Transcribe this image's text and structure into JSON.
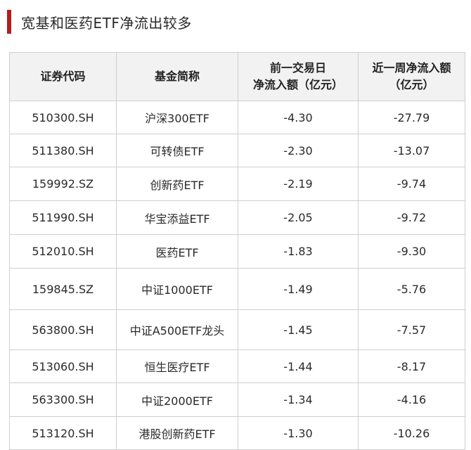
{
  "title": "宽基和医药ETF净流出较多",
  "table": {
    "headers": [
      {
        "line1": "证券代码",
        "line2": ""
      },
      {
        "line1": "基金简称",
        "line2": ""
      },
      {
        "line1": "前一交易日",
        "line2": "净流入额（亿元）"
      },
      {
        "line1": "近一周净流入额",
        "line2": "（亿元）"
      }
    ],
    "rows": [
      {
        "code": "510300.SH",
        "name": "沪深300ETF",
        "day": "-4.30",
        "week": "-27.79"
      },
      {
        "code": "511380.SH",
        "name": "可转债ETF",
        "day": "-2.30",
        "week": "-13.07"
      },
      {
        "code": "159992.SZ",
        "name": "创新药ETF",
        "day": "-2.19",
        "week": "-9.74"
      },
      {
        "code": "511990.SH",
        "name": "华宝添益ETF",
        "day": "-2.05",
        "week": "-9.72"
      },
      {
        "code": "512010.SH",
        "name": "医药ETF",
        "day": "-1.83",
        "week": "-9.30"
      },
      {
        "code": "159845.SZ",
        "name": "中证1000ETF",
        "day": "-1.49",
        "week": "-5.76"
      },
      {
        "code": "563800.SH",
        "name": "中证A500ETF龙头",
        "day": "-1.45",
        "week": "-7.57"
      },
      {
        "code": "513060.SH",
        "name": "恒生医疗ETF",
        "day": "-1.44",
        "week": "-8.17"
      },
      {
        "code": "563300.SH",
        "name": "中证2000ETF",
        "day": "-1.34",
        "week": "-4.16"
      },
      {
        "code": "513120.SH",
        "name": "港股创新药ETF",
        "day": "-1.30",
        "week": "-10.26"
      }
    ]
  }
}
